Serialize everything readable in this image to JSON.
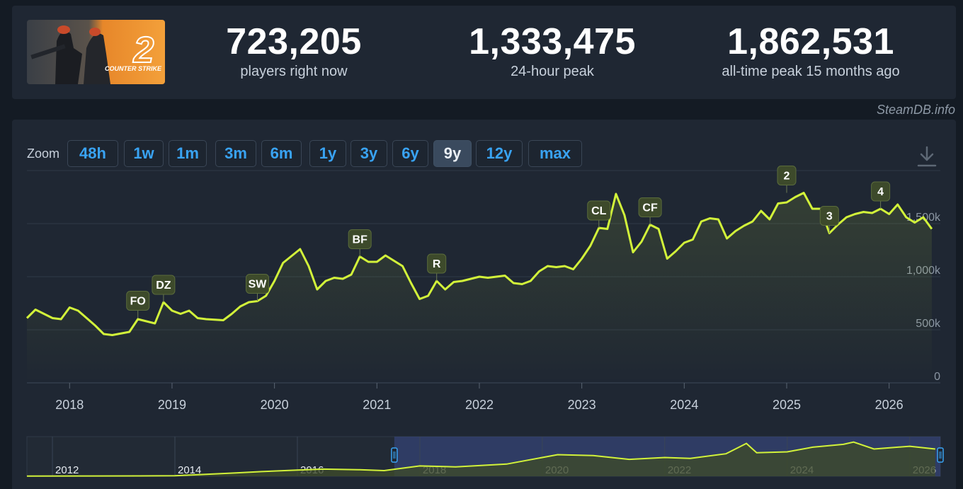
{
  "stats": {
    "current": {
      "value": "723,205",
      "label": "players right now"
    },
    "peak24": {
      "value": "1,333,475",
      "label": "24-hour peak"
    },
    "alltime": {
      "value": "1,862,531",
      "label": "all-time peak 15 months ago"
    }
  },
  "game_art": {
    "logo_text": "COUNTER STRIKE",
    "logo_number": "2"
  },
  "credit": "SteamDB.info",
  "zoom": {
    "label": "Zoom",
    "options": [
      "48h",
      "1w",
      "1m",
      "3m",
      "6m",
      "1y",
      "3y",
      "6y",
      "9y",
      "12y",
      "max"
    ],
    "selected": "9y"
  },
  "colors": {
    "accent": "#39a3f3",
    "line": "#d2f23a",
    "background": "#141b24",
    "panel": "#1f2733"
  },
  "chart_data": {
    "type": "line",
    "title": "",
    "xlabel": "",
    "ylabel": "",
    "x_range": [
      "2017-08",
      "2026-07"
    ],
    "ylim": [
      0,
      1900000
    ],
    "y_ticks": [
      "0",
      "500k",
      "1,000k",
      "1,500k"
    ],
    "x_ticks": [
      "2018",
      "2019",
      "2020",
      "2021",
      "2022",
      "2023",
      "2024",
      "2025",
      "2026"
    ],
    "series": [
      {
        "x": [
          "2017-08",
          "2017-09",
          "2017-11",
          "2017-12",
          "2018-01",
          "2018-02",
          "2018-04",
          "2018-05",
          "2018-06",
          "2018-08",
          "2018-09",
          "2018-11",
          "2018-12",
          "2019-01",
          "2019-02",
          "2019-03",
          "2019-04",
          "2019-05",
          "2019-07",
          "2019-08",
          "2019-09",
          "2019-10",
          "2019-11",
          "2019-12",
          "2020-01",
          "2020-02",
          "2020-04",
          "2020-05",
          "2020-06",
          "2020-07",
          "2020-08",
          "2020-09",
          "2020-10",
          "2020-11",
          "2020-12",
          "2021-01",
          "2021-02",
          "2021-04",
          "2021-05",
          "2021-06",
          "2021-07",
          "2021-08",
          "2021-09",
          "2021-10",
          "2021-11",
          "2022-01",
          "2022-02",
          "2022-04",
          "2022-05",
          "2022-06",
          "2022-07",
          "2022-08",
          "2022-09",
          "2022-10",
          "2022-11",
          "2022-12",
          "2023-01",
          "2023-02",
          "2023-03",
          "2023-04",
          "2023-05",
          "2023-06",
          "2023-07",
          "2023-08",
          "2023-09",
          "2023-10",
          "2023-11",
          "2023-12",
          "2024-01",
          "2024-02",
          "2024-03",
          "2024-04",
          "2024-05",
          "2024-06",
          "2024-07",
          "2024-08",
          "2024-09",
          "2024-10",
          "2024-11",
          "2024-12",
          "2025-01",
          "2025-02",
          "2025-03",
          "2025-04",
          "2025-05",
          "2025-06",
          "2025-07",
          "2025-08",
          "2025-09",
          "2025-10",
          "2025-11",
          "2025-12",
          "2026-01",
          "2026-02",
          "2026-03",
          "2026-04",
          "2026-05",
          "2026-06"
        ],
        "y": [
          610000,
          690000,
          610000,
          600000,
          710000,
          680000,
          540000,
          460000,
          450000,
          480000,
          600000,
          560000,
          760000,
          680000,
          650000,
          680000,
          610000,
          600000,
          590000,
          650000,
          720000,
          760000,
          770000,
          820000,
          960000,
          1130000,
          1260000,
          1100000,
          880000,
          960000,
          990000,
          980000,
          1020000,
          1190000,
          1140000,
          1140000,
          1200000,
          1100000,
          940000,
          790000,
          820000,
          960000,
          880000,
          950000,
          960000,
          1000000,
          990000,
          1010000,
          940000,
          930000,
          960000,
          1050000,
          1100000,
          1090000,
          1100000,
          1070000,
          1170000,
          1290000,
          1460000,
          1450000,
          1780000,
          1580000,
          1230000,
          1330000,
          1490000,
          1450000,
          1170000,
          1240000,
          1320000,
          1350000,
          1520000,
          1550000,
          1540000,
          1360000,
          1430000,
          1480000,
          1520000,
          1620000,
          1540000,
          1690000,
          1700000,
          1750000,
          1790000,
          1640000,
          1640000,
          1410000,
          1490000,
          1560000,
          1590000,
          1610000,
          1600000,
          1640000,
          1590000,
          1680000,
          1560000,
          1510000,
          1560000,
          1450000
        ]
      }
    ],
    "annotations": [
      {
        "label": "FO",
        "x": "2018-09",
        "y": 610000
      },
      {
        "label": "DZ",
        "x": "2018-12",
        "y": 760000
      },
      {
        "label": "SW",
        "x": "2019-11",
        "y": 770000
      },
      {
        "label": "BF",
        "x": "2020-11",
        "y": 1190000
      },
      {
        "label": "R",
        "x": "2021-08",
        "y": 960000
      },
      {
        "label": "CL",
        "x": "2023-03",
        "y": 1460000
      },
      {
        "label": "CF",
        "x": "2023-09",
        "y": 1490000
      },
      {
        "label": "2",
        "x": "2025-01",
        "y": 1790000
      },
      {
        "label": "3",
        "x": "2025-06",
        "y": 1410000
      },
      {
        "label": "4",
        "x": "2025-12",
        "y": 1640000
      }
    ],
    "navigator": {
      "x_ticks": [
        "2012",
        "2014",
        "2016",
        "2018",
        "2020",
        "2022",
        "2024",
        "2026"
      ],
      "x_range": [
        "2011-08",
        "2026-07"
      ],
      "selected_range": [
        "2017-08",
        "2026-07"
      ],
      "x": [
        "2011-08",
        "2012-06",
        "2013-06",
        "2014-01",
        "2014-06",
        "2015-01",
        "2015-06",
        "2016-01",
        "2016-06",
        "2017-01",
        "2017-06",
        "2018-01",
        "2018-08",
        "2019-06",
        "2020-04",
        "2020-11",
        "2021-06",
        "2022-01",
        "2022-06",
        "2023-01",
        "2023-05",
        "2023-07",
        "2024-01",
        "2024-06",
        "2024-12",
        "2025-02",
        "2025-06",
        "2026-01",
        "2026-06"
      ],
      "y": [
        10000,
        15000,
        20000,
        30000,
        90000,
        180000,
        250000,
        330000,
        380000,
        350000,
        300000,
        550000,
        500000,
        650000,
        1150000,
        1100000,
        900000,
        1000000,
        950000,
        1200000,
        1750000,
        1250000,
        1300000,
        1550000,
        1700000,
        1820000,
        1450000,
        1600000,
        1450000
      ]
    }
  }
}
